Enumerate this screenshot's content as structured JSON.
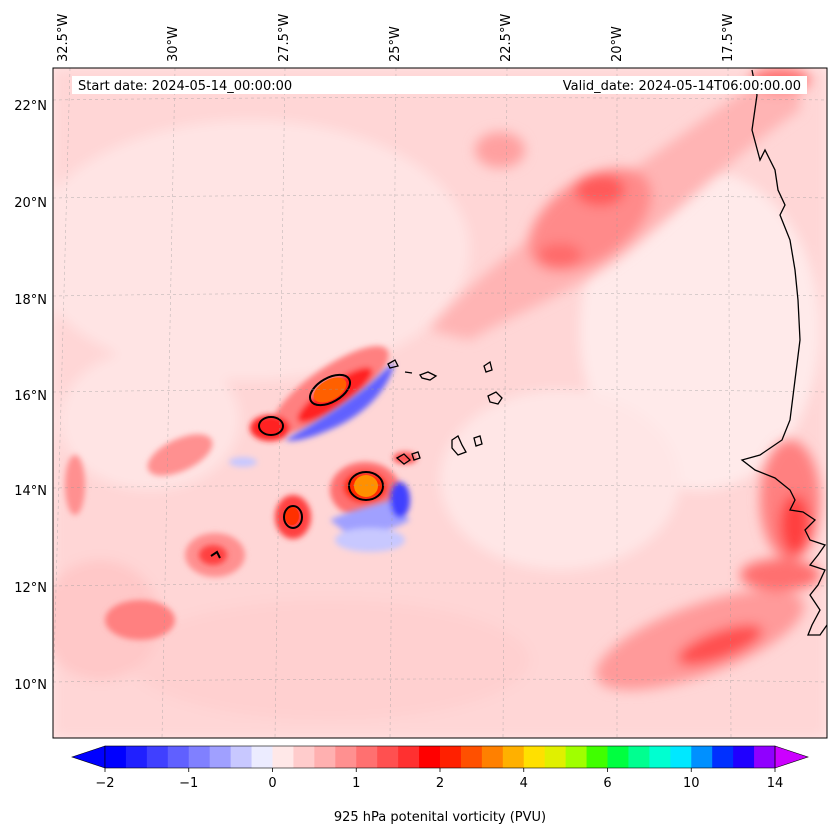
{
  "map": {
    "start_date": "Start date: 2024-05-14_00:00:00",
    "valid_date": "Valid_date: 2024-05-14T06:00:00.00"
  },
  "lon_labels": [
    "32.5°W",
    "30°W",
    "27.5°W",
    "25°W",
    "22.5°W",
    "20°W",
    "17.5°W"
  ],
  "lat_labels": [
    "22°N",
    "20°N",
    "18°N",
    "16°N",
    "14°N",
    "12°N",
    "10°N"
  ],
  "colorbar": {
    "label": "925 hPa potenital vorticity (PVU)",
    "ticks": [
      "−2",
      "−1",
      "0",
      "1",
      "2",
      "4",
      "6",
      "10",
      "14"
    ],
    "colors": [
      "#0000ff",
      "#2020ff",
      "#4040ff",
      "#6060ff",
      "#8080ff",
      "#a0a0ff",
      "#c8c8ff",
      "#ececff",
      "#ffe8e8",
      "#ffcccc",
      "#ffb0b0",
      "#ff9090",
      "#ff7070",
      "#ff5050",
      "#ff3030",
      "#ff0000",
      "#ff2000",
      "#ff5000",
      "#ff8000",
      "#ffb000",
      "#ffe000",
      "#e0f000",
      "#a0ff00",
      "#40ff00",
      "#00ff40",
      "#00ff90",
      "#00ffd0",
      "#00e8ff",
      "#0090ff",
      "#0030ff",
      "#2000ff",
      "#9000ff"
    ],
    "under_color": "#0000ff",
    "over_color": "#cc00ff"
  }
}
